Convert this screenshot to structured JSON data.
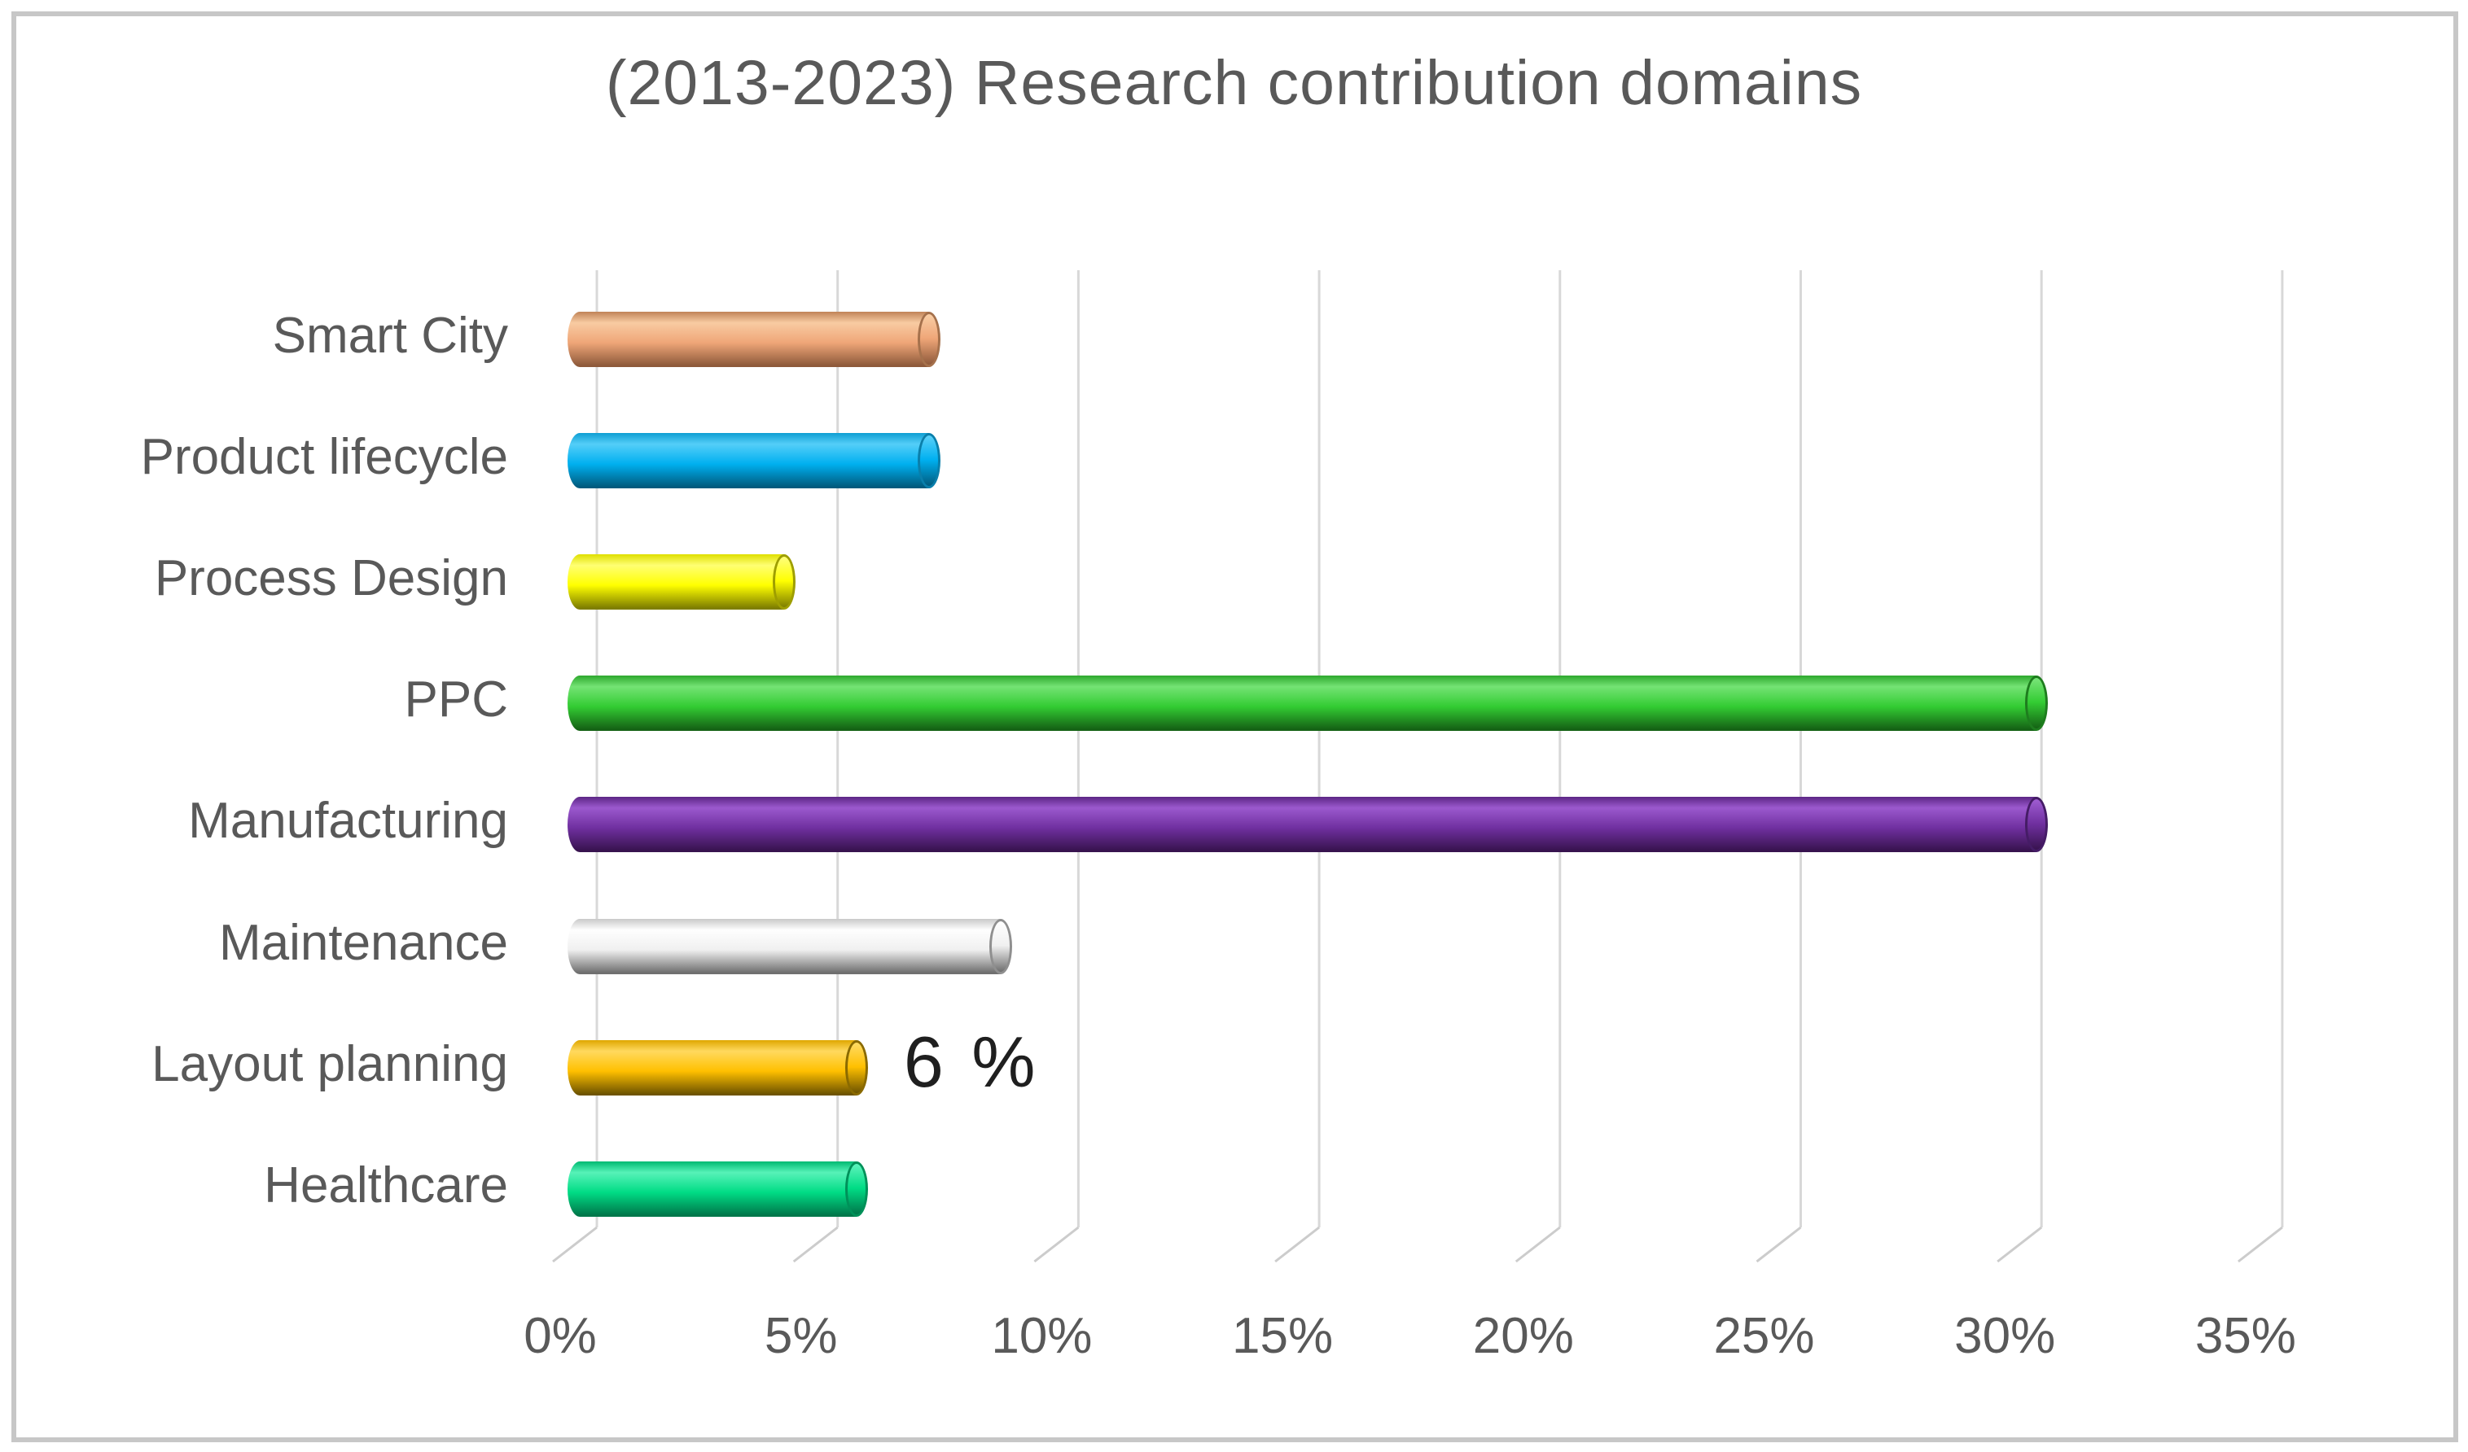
{
  "chart_data": {
    "type": "bar",
    "orientation": "horizontal",
    "style": "3d-cylinder",
    "title": "(2013-2023) Research contribution domains",
    "categories": [
      "Smart City",
      "Product lifecycle",
      "Process Design",
      "PPC",
      "Manufacturing",
      "Maintenance",
      "Layout planning",
      "Healthcare"
    ],
    "values": [
      7.5,
      7.5,
      4.5,
      30.5,
      30.5,
      9,
      6,
      6
    ],
    "unit": "%",
    "xlabel": "",
    "ylabel": "",
    "xlim": [
      0,
      35
    ],
    "x_tick_step": 5,
    "x_tick_labels": [
      "0%",
      "5%",
      "10%",
      "15%",
      "20%",
      "25%",
      "30%",
      "35%"
    ],
    "grid": true,
    "legend": false,
    "data_labels": [
      {
        "category": "Layout planning",
        "value": 6,
        "text": "6 %"
      }
    ],
    "series_colors": [
      {
        "category": "Smart City",
        "base": "#EFA678",
        "light": "#F8CBA2",
        "top": "#C08357",
        "dark": "#8E5A3B",
        "rim": "#A5714C"
      },
      {
        "category": "Product lifecycle",
        "base": "#00B0F0",
        "light": "#54CEF8",
        "top": "#0E9ED3",
        "dark": "#015B7E",
        "rim": "#0A7FAB"
      },
      {
        "category": "Process Design",
        "base": "#FFFF00",
        "light": "#FFFF73",
        "top": "#DFDF00",
        "dark": "#7E7E00",
        "rim": "#9E9E00"
      },
      {
        "category": "PPC",
        "base": "#33CC33",
        "light": "#74E374",
        "top": "#2DA82D",
        "dark": "#156215",
        "rim": "#1E7D1E"
      },
      {
        "category": "Manufacturing",
        "base": "#7030A0",
        "light": "#9B59CE",
        "top": "#5C2685",
        "dark": "#38134F",
        "rim": "#451C66"
      },
      {
        "category": "Maintenance",
        "base": "#F0F0F0",
        "light": "#FEFEFE",
        "top": "#C9C9C9",
        "dark": "#6F6F6F",
        "rim": "#8F8F8F"
      },
      {
        "category": "Layout planning",
        "base": "#FFC000",
        "light": "#FFD95E",
        "top": "#DFA700",
        "dark": "#6E5400",
        "rim": "#8A6A00"
      },
      {
        "category": "Healthcare",
        "base": "#00DC85",
        "light": "#57F2B8",
        "top": "#00BA72",
        "dark": "#00774A",
        "rim": "#009159"
      }
    ],
    "colors": {
      "background": "#FFFFFF",
      "frame_border": "#C7C7C7",
      "title_text": "#595959",
      "axis_text": "#595959",
      "category_text": "#595959",
      "gridline": "#D8D8D8",
      "floor_tick": "#CCCCCC",
      "data_label_text": "#1F1F1F"
    }
  }
}
